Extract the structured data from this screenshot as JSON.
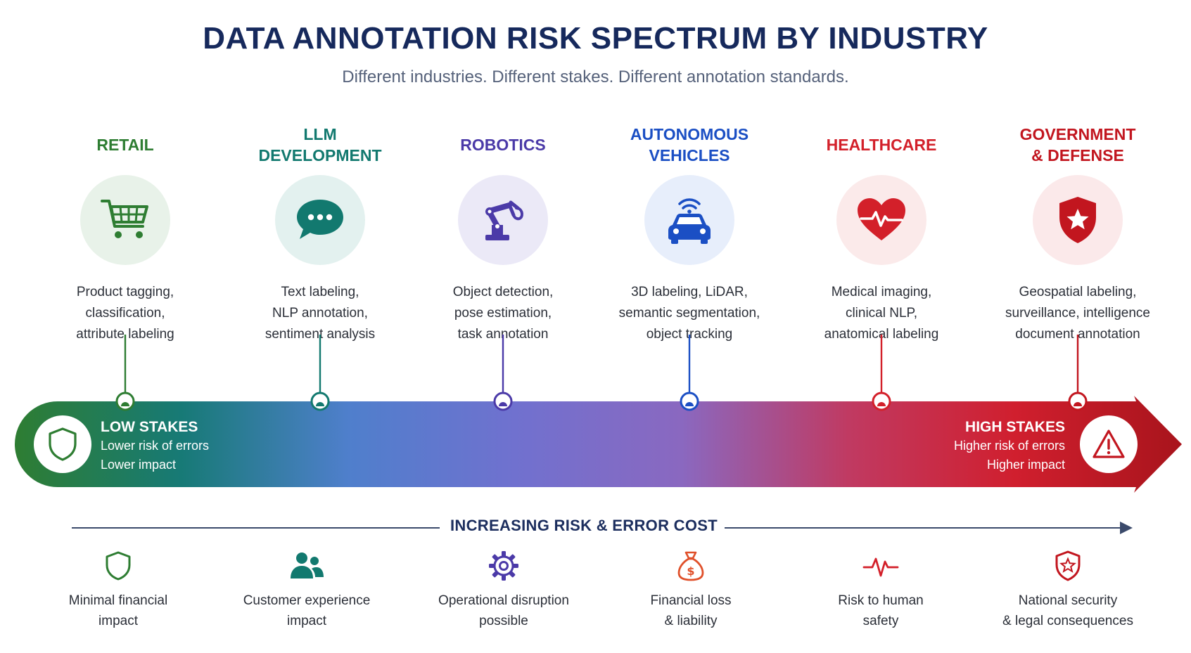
{
  "header": {
    "title": "DATA ANNOTATION RISK SPECTRUM BY INDUSTRY",
    "subtitle": "Different industries. Different stakes. Different annotation standards."
  },
  "industries": [
    {
      "name": "RETAIL",
      "icon": "shopping-cart-icon",
      "color": "#2e7d32",
      "bg": "#e8f2e9",
      "desc": [
        "Product tagging,",
        "classification,",
        "attribute labeling"
      ]
    },
    {
      "name": "LLM\nDEVELOPMENT",
      "icon": "chat-bubble-icon",
      "color": "#12796f",
      "bg": "#e3f1ef",
      "desc": [
        "Text labeling,",
        "NLP annotation,",
        "sentiment analysis"
      ]
    },
    {
      "name": "ROBOTICS",
      "icon": "robot-arm-icon",
      "color": "#4b3aa8",
      "bg": "#ebe9f7",
      "desc": [
        "Object detection,",
        "pose estimation,",
        "task annotation"
      ]
    },
    {
      "name": "AUTONOMOUS\nVEHICLES",
      "icon": "connected-car-icon",
      "color": "#1b4fc4",
      "bg": "#e7eefb",
      "desc": [
        "3D labeling, LiDAR,",
        "semantic segmentation,",
        "object tracking"
      ]
    },
    {
      "name": "HEALTHCARE",
      "icon": "heartbeat-icon",
      "color": "#d3202a",
      "bg": "#fbeaea",
      "desc": [
        "Medical imaging,",
        "clinical NLP,",
        "anatomical labeling"
      ]
    },
    {
      "name": "GOVERNMENT\n& DEFENSE",
      "icon": "star-shield-icon",
      "color": "#c2161f",
      "bg": "#fbe9ea",
      "desc": [
        "Geospatial labeling,",
        "surveillance, intelligence",
        "document annotation"
      ]
    }
  ],
  "spectrum": {
    "low": {
      "title": "LOW STAKES",
      "lines": [
        "Lower risk of errors",
        "Lower impact"
      ],
      "icon": "shield-icon",
      "color": "#2e7d32"
    },
    "high": {
      "title": "HIGH STAKES",
      "lines": [
        "Higher risk of errors",
        "Higher impact"
      ],
      "icon": "warning-icon",
      "color": "#c2161f"
    },
    "gradient": [
      "#2e7d32",
      "#177a76",
      "#4f7fcc",
      "#7071cf",
      "#8a68c0",
      "#c03a62",
      "#d01f2e",
      "#a8141c"
    ]
  },
  "axis": {
    "label": "INCREASING RISK & ERROR COST",
    "color": "#3b4a6b"
  },
  "impacts": [
    {
      "icon": "shield-icon",
      "color": "#2e7d32",
      "text": [
        "Minimal financial",
        "impact"
      ]
    },
    {
      "icon": "users-icon",
      "color": "#12796f",
      "text": [
        "Customer experience",
        "impact"
      ]
    },
    {
      "icon": "gear-icon",
      "color": "#4b3aa8",
      "text": [
        "Operational disruption",
        "possible"
      ]
    },
    {
      "icon": "money-bag-icon",
      "color": "#e0502a",
      "text": [
        "Financial loss",
        "& liability"
      ]
    },
    {
      "icon": "pulse-icon",
      "color": "#d3202a",
      "text": [
        "Risk to human",
        "safety"
      ]
    },
    {
      "icon": "star-shield-icon",
      "color": "#c2161f",
      "text": [
        "National security",
        "& legal consequences"
      ]
    }
  ]
}
